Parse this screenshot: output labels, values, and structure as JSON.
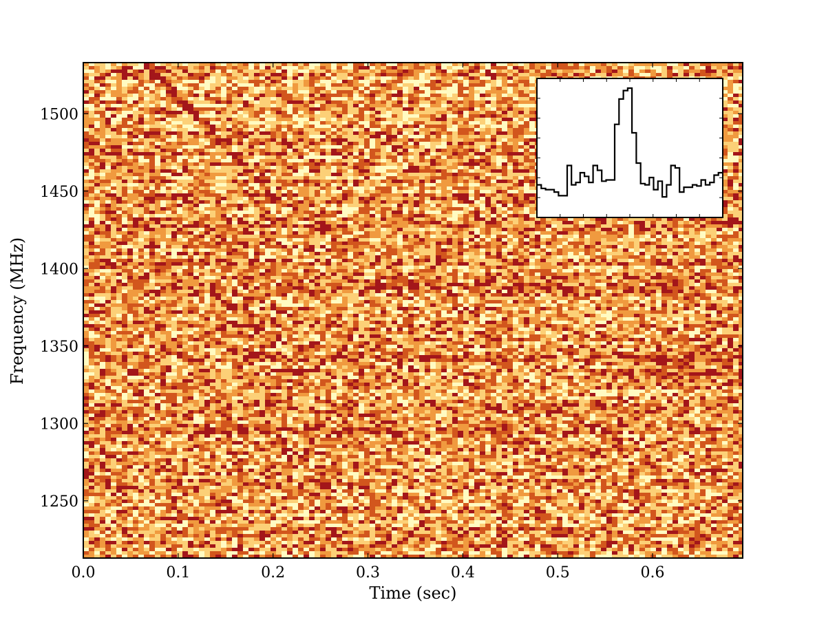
{
  "chart_data": [
    {
      "type": "heatmap",
      "title": "",
      "xlabel": "Time  (sec)",
      "ylabel": "Frequency  (MHz)",
      "xlim": [
        0.0,
        0.695
      ],
      "ylim": [
        1213,
        1533
      ],
      "xticks": [
        0.0,
        0.1,
        0.2,
        0.3,
        0.4,
        0.5,
        0.6
      ],
      "xtick_labels": [
        "0.0",
        "0.1",
        "0.2",
        "0.3",
        "0.4",
        "0.5",
        "0.6"
      ],
      "yticks": [
        1250,
        1300,
        1350,
        1400,
        1450,
        1500
      ],
      "ytick_labels": [
        "1250",
        "1300",
        "1350",
        "1400",
        "1450",
        "1500"
      ],
      "colormap": [
        "#fffbc2",
        "#fcd077",
        "#f09a3f",
        "#d2561d",
        "#a3161a"
      ],
      "dispersed_pulse": {
        "time_at_top": 0.065,
        "freq_top": 1533,
        "time_at_bottom": 0.21,
        "freq_bottom": 1440
      },
      "interference_bands": [
        {
          "freq_low": 1325,
          "freq_high": 1355,
          "time_start": 0.53,
          "time_end": 0.695
        }
      ],
      "grid": false
    },
    {
      "type": "line",
      "role": "inset pulse profile",
      "title": "",
      "xlabel": "",
      "ylabel": "",
      "drawstyle": "steps",
      "values": [
        0.12,
        0.09,
        0.08,
        0.08,
        0.06,
        0.03,
        0.03,
        0.28,
        0.12,
        0.14,
        0.22,
        0.19,
        0.14,
        0.28,
        0.24,
        0.15,
        0.16,
        0.16,
        0.62,
        0.83,
        0.9,
        0.92,
        0.55,
        0.3,
        0.13,
        0.12,
        0.18,
        0.08,
        0.15,
        0.02,
        0.12,
        0.28,
        0.26,
        0.06,
        0.1,
        0.1,
        0.12,
        0.11,
        0.16,
        0.12,
        0.14,
        0.2,
        0.22
      ],
      "ylim": [
        -0.15,
        1.0
      ]
    }
  ]
}
